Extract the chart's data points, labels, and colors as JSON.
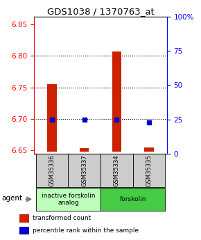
{
  "title": "GDS1038 / 1370763_at",
  "samples": [
    "GSM35336",
    "GSM35337",
    "GSM35334",
    "GSM35335"
  ],
  "red_values": [
    6.755,
    6.654,
    6.807,
    6.655
  ],
  "blue_values": [
    25.0,
    25.0,
    25.0,
    23.0
  ],
  "red_base": 6.648,
  "ylim_left": [
    6.645,
    6.862
  ],
  "ylim_right": [
    0,
    100
  ],
  "left_ticks": [
    6.65,
    6.7,
    6.75,
    6.8,
    6.85
  ],
  "right_ticks": [
    0,
    25,
    50,
    75,
    100
  ],
  "right_tick_labels": [
    "0",
    "25",
    "50",
    "75",
    "100%"
  ],
  "groups": [
    {
      "label": "inactive forskolin\nanalog",
      "samples": [
        0,
        1
      ],
      "color": "#bbffbb"
    },
    {
      "label": "forskolin",
      "samples": [
        2,
        3
      ],
      "color": "#44cc44"
    }
  ],
  "agent_label": "agent",
  "legend_red": "transformed count",
  "legend_blue": "percentile rank within the sample",
  "bar_color": "#cc2200",
  "dot_color": "#0000cc",
  "bar_width": 0.28,
  "bar_gray": "#cccccc",
  "title_fontsize": 9.5,
  "tick_fontsize": 7.5,
  "label_fontsize": 7
}
